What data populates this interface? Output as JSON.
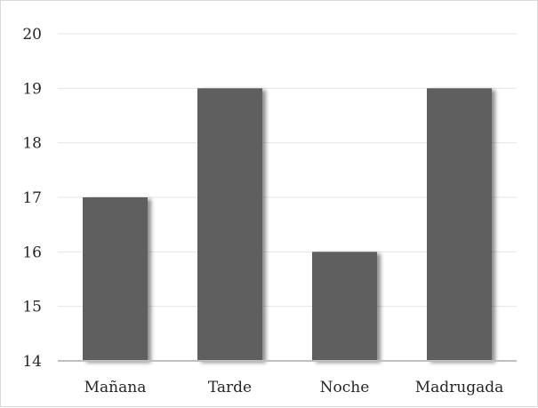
{
  "chart_data": {
    "type": "bar",
    "categories": [
      "Mañana",
      "Tarde",
      "Noche",
      "Madrugada"
    ],
    "values": [
      17,
      19,
      16,
      19
    ],
    "title": "",
    "xlabel": "",
    "ylabel": "",
    "ylim": [
      14,
      20
    ],
    "yticks": [
      14,
      15,
      16,
      17,
      18,
      19,
      20
    ],
    "grid": true,
    "legend": "none",
    "colors": {
      "bar": "#5f5f5f",
      "bar_shadow": "#bdbdbd",
      "grid": "#e6e6e6",
      "axis": "#bfbfbf",
      "text": "#262626"
    }
  }
}
